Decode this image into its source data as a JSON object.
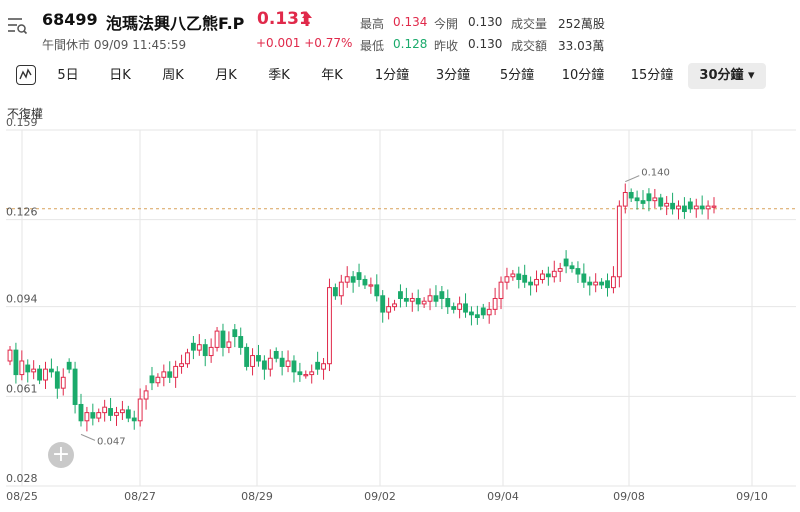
{
  "header": {
    "menu_icon": "list-search-icon",
    "code": "68499",
    "name": "泡瑪法興八乙熊F.P",
    "price": "0.131",
    "status": "午間休市 09/09 11:45:59",
    "change": "+0.001 +0.77%",
    "arrow_icon": "up-arrow-icon",
    "price_color": "#e0294a",
    "stats": {
      "high_label": "最高",
      "high": "0.134",
      "open_label": "今開",
      "open": "0.130",
      "volume_label": "成交量",
      "volume": "252萬股",
      "low_label": "最低",
      "low": "0.128",
      "prev_close_label": "昨收",
      "prev_close": "0.130",
      "turnover_label": "成交額",
      "turnover": "33.03萬"
    }
  },
  "tabs": {
    "icon": "line-chart-icon",
    "items": [
      "5日",
      "日K",
      "周K",
      "月K",
      "季K",
      "年K",
      "1分鐘",
      "3分鐘",
      "5分鐘",
      "10分鐘",
      "15分鐘"
    ],
    "active": "30分鐘 ▾"
  },
  "chart": {
    "adjust_label": "不復權",
    "add_icon": "plus-icon",
    "add_label": "+"
  },
  "chart_data": {
    "type": "candlestick",
    "y_ticks": [
      "0.159",
      "0.126",
      "0.094",
      "0.061",
      "0.028"
    ],
    "ylim": [
      0.028,
      0.159
    ],
    "x_ticks": [
      "08/25",
      "08/27",
      "08/29",
      "09/02",
      "09/04",
      "09/08",
      "09/10"
    ],
    "reference_price": 0.13,
    "annotations": [
      {
        "label": "0.047",
        "value": 0.047,
        "kind": "low"
      },
      {
        "label": "0.140",
        "value": 0.14,
        "kind": "high"
      }
    ],
    "up_color": "#e0294a",
    "down_color": "#1aaa6b",
    "closes": [
      0.078,
      0.069,
      0.074,
      0.07,
      0.071,
      0.067,
      0.071,
      0.07,
      0.064,
      0.068,
      0.071,
      0.058,
      0.052,
      0.055,
      0.053,
      0.055,
      0.057,
      0.054,
      0.055,
      0.056,
      0.053,
      0.052,
      0.06,
      0.063,
      0.066,
      0.068,
      0.07,
      0.068,
      0.072,
      0.073,
      0.077,
      0.078,
      0.08,
      0.076,
      0.079,
      0.085,
      0.079,
      0.081,
      0.083,
      0.079,
      0.072,
      0.076,
      0.074,
      0.071,
      0.075,
      0.075,
      0.072,
      0.074,
      0.07,
      0.069,
      0.069,
      0.07,
      0.071,
      0.073,
      0.101,
      0.098,
      0.103,
      0.105,
      0.103,
      0.104,
      0.102,
      0.102,
      0.098,
      0.092,
      0.094,
      0.095,
      0.097,
      0.096,
      0.097,
      0.095,
      0.096,
      0.098,
      0.096,
      0.097,
      0.094,
      0.093,
      0.095,
      0.092,
      0.091,
      0.09,
      0.091,
      0.093,
      0.097,
      0.103,
      0.105,
      0.106,
      0.104,
      0.103,
      0.102,
      0.104,
      0.106,
      0.105,
      0.107,
      0.108,
      0.109,
      0.108,
      0.106,
      0.103,
      0.102,
      0.103,
      0.102,
      0.101,
      0.105,
      0.131,
      0.136,
      0.134,
      0.133,
      0.132,
      0.133,
      0.134,
      0.131,
      0.132,
      0.13,
      0.131,
      0.129,
      0.13,
      0.131,
      0.13,
      0.131,
      0.131
    ]
  }
}
